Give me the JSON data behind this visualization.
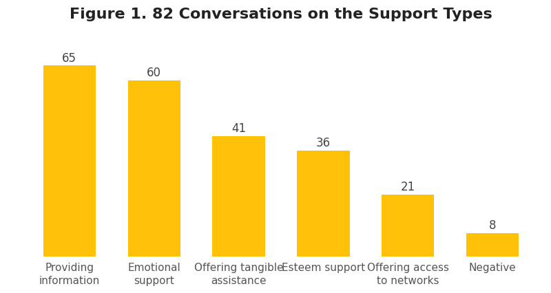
{
  "title": "Figure 1. 82 Conversations on the Support Types",
  "categories": [
    "Providing\ninformation",
    "Emotional\nsupport",
    "Offering tangible\nassistance",
    "Esteem support",
    "Offering access\nto networks",
    "Negative"
  ],
  "values": [
    65,
    60,
    41,
    36,
    21,
    8
  ],
  "bar_color": "#FFC107",
  "bar_width": 0.62,
  "ylim": [
    0,
    78
  ],
  "title_fontsize": 16,
  "label_fontsize": 11,
  "value_fontsize": 12,
  "background_color": "#ffffff",
  "label_color": "#555555",
  "value_color": "#444444"
}
